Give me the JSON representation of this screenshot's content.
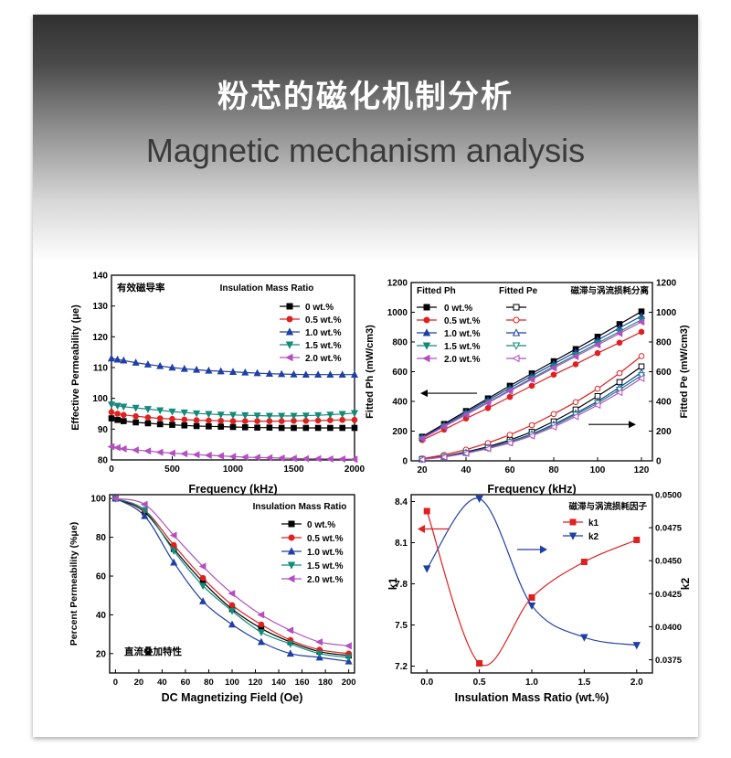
{
  "header": {
    "title_cn": "粉芯的磁化机制分析",
    "title_en": "Magnetic mechanism analysis"
  },
  "chart_data": [
    {
      "type": "line",
      "annotation": "有效磁导率",
      "legend_title": "Insulation Mass Ratio",
      "legend_position": "top-right",
      "xlabel": "Frequency (kHz)",
      "ylabel": "Effective Permeability (μe)",
      "xlim": [
        0,
        2000
      ],
      "ylim": [
        80,
        140
      ],
      "xticks": [
        "0",
        "500",
        "1000",
        "1500",
        "2000"
      ],
      "yticks": [
        "80",
        "90",
        "100",
        "110",
        "120",
        "130",
        "140"
      ],
      "x": [
        0,
        50,
        100,
        200,
        300,
        400,
        500,
        600,
        700,
        800,
        900,
        1000,
        1100,
        1200,
        1300,
        1400,
        1500,
        1600,
        1700,
        1800,
        1900,
        2000
      ],
      "series": [
        {
          "name": "0 wt.%",
          "color": "#000000",
          "marker": "square",
          "values": [
            93.5,
            93.0,
            92.6,
            92.2,
            91.9,
            91.6,
            91.4,
            91.2,
            91.0,
            90.9,
            90.8,
            90.7,
            90.6,
            90.5,
            90.5,
            90.4,
            90.4,
            90.4,
            90.4,
            90.4,
            90.4,
            90.4
          ]
        },
        {
          "name": "0.5 wt.%",
          "color": "#e02020",
          "marker": "circle",
          "values": [
            95.5,
            95.0,
            94.6,
            94.2,
            93.8,
            93.5,
            93.3,
            93.1,
            92.9,
            92.8,
            92.7,
            92.6,
            92.6,
            92.6,
            92.6,
            92.6,
            92.7,
            92.7,
            92.8,
            92.9,
            93.0,
            93.0
          ]
        },
        {
          "name": "1.0 wt.%",
          "color": "#1f3fa6",
          "marker": "triangle-up",
          "values": [
            113.0,
            112.6,
            112.3,
            111.6,
            111.0,
            110.5,
            110.0,
            109.6,
            109.3,
            109.0,
            108.8,
            108.6,
            108.4,
            108.2,
            108.0,
            107.9,
            107.8,
            107.7,
            107.7,
            107.7,
            107.7,
            107.7
          ]
        },
        {
          "name": "1.5 wt.%",
          "color": "#138a7a",
          "marker": "triangle-down",
          "values": [
            98.0,
            97.6,
            97.3,
            96.9,
            96.5,
            96.1,
            95.7,
            95.4,
            95.1,
            94.9,
            94.7,
            94.6,
            94.5,
            94.4,
            94.3,
            94.3,
            94.3,
            94.4,
            94.5,
            94.7,
            94.9,
            95.2
          ]
        },
        {
          "name": "2.0 wt.%",
          "color": "#b34fc0",
          "marker": "triangle-left",
          "values": [
            84.3,
            84.0,
            83.6,
            83.2,
            82.9,
            82.5,
            82.2,
            82.0,
            81.7,
            81.5,
            81.3,
            81.1,
            80.9,
            80.8,
            80.7,
            80.6,
            80.5,
            80.4,
            80.4,
            80.3,
            80.3,
            80.2
          ]
        }
      ]
    },
    {
      "type": "line",
      "annotation": "磁滞与涡流损耗分离",
      "legend_titles": [
        "Fitted Ph",
        "Fitted Pe"
      ],
      "legend_position": "top-left",
      "xlabel": "Frequency (kHz)",
      "ylabel_left": "Fitted Ph (mW/cm3)",
      "ylabel_right": "Fitted Pe (mW/cm3)",
      "xlim": [
        15,
        125
      ],
      "ylim": [
        0,
        1200
      ],
      "xticks": [
        "20",
        "40",
        "60",
        "80",
        "100",
        "120"
      ],
      "yticks": [
        "0",
        "200",
        "400",
        "600",
        "800",
        "1000",
        "1200"
      ],
      "x": [
        20,
        30,
        40,
        50,
        60,
        70,
        80,
        90,
        100,
        110,
        120
      ],
      "hysteresis_series": [
        {
          "name": "0 wt.%",
          "color": "#000000",
          "marker": "square",
          "values": [
            162,
            248,
            335,
            420,
            505,
            588,
            670,
            752,
            835,
            920,
            1005
          ]
        },
        {
          "name": "0.5 wt.%",
          "color": "#e02020",
          "marker": "circle",
          "values": [
            140,
            210,
            285,
            355,
            430,
            505,
            580,
            650,
            725,
            795,
            868
          ]
        },
        {
          "name": "1.0 wt.%",
          "color": "#1f3fa6",
          "marker": "triangle-up",
          "values": [
            155,
            240,
            325,
            408,
            490,
            572,
            652,
            732,
            812,
            895,
            975
          ]
        },
        {
          "name": "1.5 wt.%",
          "color": "#138a7a",
          "marker": "triangle-down",
          "values": [
            150,
            232,
            315,
            395,
            475,
            555,
            635,
            712,
            792,
            870,
            950
          ]
        },
        {
          "name": "2.0 wt.%",
          "color": "#b34fc0",
          "marker": "triangle-left",
          "values": [
            150,
            230,
            310,
            390,
            470,
            548,
            625,
            702,
            780,
            858,
            935
          ]
        }
      ],
      "eddy_series": [
        {
          "name": "0 wt.%",
          "color": "#000000",
          "marker": "square-open",
          "values": [
            12,
            30,
            60,
            95,
            140,
            195,
            265,
            345,
            435,
            530,
            635
          ]
        },
        {
          "name": "0.5 wt.%",
          "color": "#e02020",
          "marker": "circle-open",
          "values": [
            15,
            40,
            75,
            120,
            175,
            240,
            315,
            395,
            485,
            590,
            705
          ]
        },
        {
          "name": "1.0 wt.%",
          "color": "#1f3fa6",
          "marker": "triangle-up-open",
          "values": [
            10,
            28,
            55,
            90,
            130,
            180,
            245,
            320,
            400,
            495,
            595
          ]
        },
        {
          "name": "1.5 wt.%",
          "color": "#138a7a",
          "marker": "triangle-down-open",
          "values": [
            10,
            27,
            53,
            86,
            126,
            175,
            238,
            310,
            388,
            478,
            575
          ]
        },
        {
          "name": "2.0 wt.%",
          "color": "#b34fc0",
          "marker": "triangle-left-open",
          "values": [
            9,
            25,
            50,
            82,
            120,
            168,
            228,
            298,
            375,
            460,
            555
          ]
        }
      ]
    },
    {
      "type": "line",
      "annotation": "直流叠加特性",
      "legend_title": "Insulation Mass Ratio",
      "legend_position": "top-right",
      "xlabel": "DC Magnetizing Field (Oe)",
      "ylabel": "Percent Permeability (%μe)",
      "xlim": [
        -5,
        205
      ],
      "ylim": [
        10,
        102
      ],
      "xticks": [
        "0",
        "20",
        "40",
        "60",
        "80",
        "100",
        "120",
        "140",
        "160",
        "180",
        "200"
      ],
      "yticks": [
        "20",
        "40",
        "60",
        "80",
        "100"
      ],
      "x": [
        0,
        25,
        50,
        75,
        100,
        125,
        150,
        175,
        200
      ],
      "series": [
        {
          "name": "0 wt.%",
          "color": "#000000",
          "marker": "square",
          "values": [
            100,
            93,
            74,
            57,
            43,
            33,
            26,
            21,
            19
          ]
        },
        {
          "name": "0.5 wt.%",
          "color": "#e02020",
          "marker": "circle",
          "values": [
            100,
            94,
            76,
            59,
            45,
            35,
            27,
            22,
            20
          ]
        },
        {
          "name": "1.0 wt.%",
          "color": "#1f3fa6",
          "marker": "triangle-up",
          "values": [
            100,
            91,
            67,
            47,
            35,
            26,
            20,
            18,
            16
          ]
        },
        {
          "name": "1.5 wt.%",
          "color": "#138a7a",
          "marker": "triangle-down",
          "values": [
            100,
            94,
            73,
            55,
            42,
            31,
            25,
            20,
            18
          ]
        },
        {
          "name": "2.0 wt.%",
          "color": "#b34fc0",
          "marker": "triangle-left",
          "values": [
            100,
            97,
            81,
            65,
            51,
            40,
            32,
            26,
            24
          ]
        }
      ]
    },
    {
      "type": "line",
      "annotation": "磁滞与涡流损耗因子",
      "legend_position": "top-right",
      "xlabel": "Insulation Mass Ratio (wt.%)",
      "ylabel_left": "k1",
      "ylabel_right": "k2",
      "xlim": [
        -0.15,
        2.15
      ],
      "ylim_left": [
        7.15,
        8.45
      ],
      "ylim_right": [
        0.0365,
        0.05
      ],
      "xticks": [
        "0.0",
        "0.5",
        "1.0",
        "1.5",
        "2.0"
      ],
      "yticks_left": [
        "7.2",
        "7.5",
        "7.8",
        "8.1",
        "8.4"
      ],
      "yticks_right": [
        "0.0375",
        "0.0400",
        "0.0425",
        "0.0450",
        "0.0475",
        "0.0500"
      ],
      "x": [
        0,
        0.5,
        1.0,
        1.5,
        2.0
      ],
      "series": [
        {
          "name": "k1",
          "axis": "left",
          "color": "#e02020",
          "marker": "square",
          "values": [
            8.33,
            7.22,
            7.7,
            7.96,
            8.12
          ]
        },
        {
          "name": "k2",
          "axis": "right",
          "color": "#1f3fa6",
          "marker": "triangle-down",
          "values": [
            0.0444,
            0.0497,
            0.0416,
            0.0392,
            0.0386
          ]
        }
      ]
    }
  ]
}
